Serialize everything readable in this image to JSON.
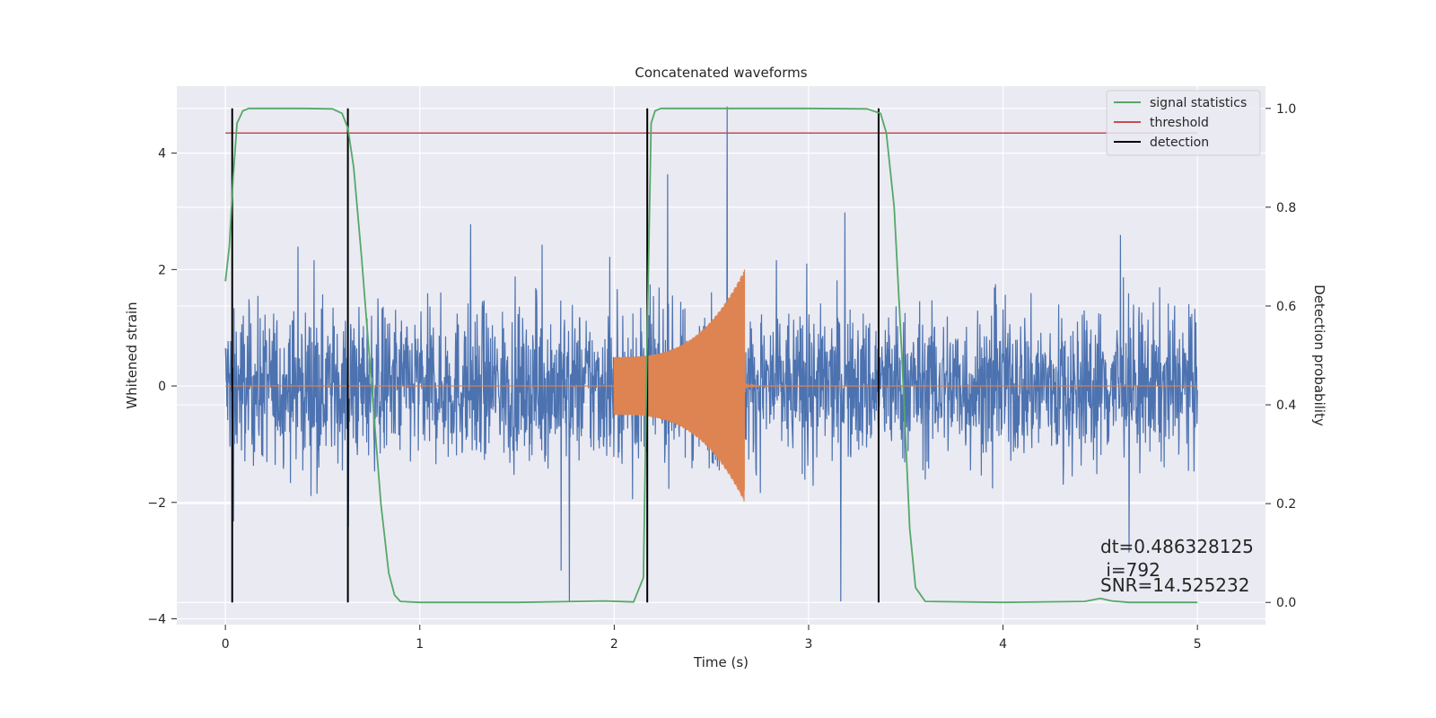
{
  "chart_data": {
    "type": "line",
    "title": "Concatenated waveforms",
    "xlabel": "Time (s)",
    "ylabel_left": "Whitened strain",
    "ylabel_right": "Detection probability",
    "xlim": [
      -0.25,
      5.35
    ],
    "ylim_left": [
      -4.1,
      5.15
    ],
    "ylim_right": [
      -0.045,
      1.045
    ],
    "x_ticks": [
      0,
      1,
      2,
      3,
      4,
      5
    ],
    "y_left_ticks": [
      -4,
      -2,
      0,
      2,
      4
    ],
    "y_right_ticks": [
      0.0,
      0.2,
      0.4,
      0.6,
      0.8,
      1.0
    ],
    "y_right_tick_labels": [
      "0.0",
      "0.2",
      "0.4",
      "0.6",
      "0.8",
      "1.0"
    ],
    "grid": true,
    "legend_position": "top-right",
    "colors": {
      "background": "#eaeaf2",
      "grid": "#ffffff",
      "strain": "#4c72b0",
      "signal": "#dd8452",
      "statistics": "#55a868",
      "threshold": "#c44e52",
      "detection": "#000000"
    },
    "series": [
      {
        "name": "signal statistics",
        "axis": "right",
        "x": [
          0.0,
          0.02,
          0.04,
          0.06,
          0.09,
          0.12,
          0.2,
          0.4,
          0.55,
          0.6,
          0.63,
          0.66,
          0.7,
          0.75,
          0.8,
          0.84,
          0.87,
          0.9,
          1.0,
          1.5,
          1.95,
          2.1,
          2.15,
          2.17,
          2.19,
          2.21,
          2.24,
          2.3,
          2.5,
          3.0,
          3.3,
          3.37,
          3.4,
          3.44,
          3.48,
          3.52,
          3.55,
          3.6,
          4.0,
          4.42,
          4.5,
          4.56,
          4.65,
          5.0
        ],
        "y": [
          0.65,
          0.72,
          0.86,
          0.97,
          0.995,
          1.0,
          1.0,
          1.0,
          0.999,
          0.99,
          0.96,
          0.88,
          0.7,
          0.45,
          0.2,
          0.06,
          0.015,
          0.002,
          0.0,
          0.0,
          0.003,
          0.001,
          0.05,
          0.55,
          0.97,
          0.995,
          1.0,
          1.0,
          1.0,
          1.0,
          0.999,
          0.99,
          0.95,
          0.8,
          0.5,
          0.15,
          0.03,
          0.002,
          0.0,
          0.002,
          0.008,
          0.003,
          0.0,
          0.0
        ]
      },
      {
        "name": "threshold",
        "axis": "right",
        "x": [
          0.0,
          5.0
        ],
        "y": [
          0.95,
          0.95
        ]
      },
      {
        "name": "detection",
        "axis": "right",
        "x_positions": [
          0.035,
          0.63,
          2.17,
          3.36
        ],
        "y_range": [
          0.0,
          1.0
        ]
      },
      {
        "axis": "left",
        "description_free": true,
        "x_range": [
          0.0,
          5.0
        ],
        "std": 0.65,
        "peak": 4.8,
        "peak_at": 2.58,
        "min": -3.7,
        "min_at": 1.77
      },
      {
        "axis": "left",
        "x_range": [
          2.0,
          2.67
        ],
        "amp_start": 0.5,
        "amp_end": 2.0
      }
    ],
    "annotations": [
      "dt=0.486328125",
      " i=792",
      "SNR=14.525232"
    ]
  }
}
